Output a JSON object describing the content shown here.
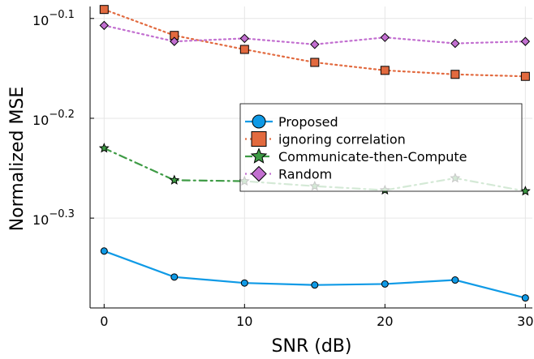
{
  "chart_data": {
    "type": "line",
    "title": "",
    "xlabel": "SNR (dB)",
    "ylabel": "Normalized MSE",
    "x": [
      0,
      5,
      10,
      15,
      20,
      25,
      30
    ],
    "xlim": [
      -1,
      30.5
    ],
    "xticks": [
      0,
      10,
      20,
      30
    ],
    "ylog10lim": [
      -0.39,
      -0.088
    ],
    "yticks": [
      {
        "value": -0.1,
        "label": "10",
        "exp": "−0.1"
      },
      {
        "value": -0.2,
        "label": "10",
        "exp": "−0.2"
      },
      {
        "value": -0.3,
        "label": "10",
        "exp": "−0.3"
      }
    ],
    "grid": true,
    "legend_position": "center-right",
    "series": [
      {
        "name": "Proposed",
        "color": "#0f9ae6",
        "line_style": "solid",
        "marker": "circle",
        "log10_values": [
          -0.333,
          -0.359,
          -0.365,
          -0.367,
          -0.366,
          -0.362,
          -0.38
        ]
      },
      {
        "name": "ignoring correlation",
        "color": "#e26a3f",
        "line_style": "dotted",
        "marker": "square",
        "log10_values": [
          -0.091,
          -0.117,
          -0.131,
          -0.144,
          -0.152,
          -0.156,
          -0.158
        ]
      },
      {
        "name": "Communicate-then-Compute",
        "color": "#3e9b45",
        "line_style": "dashdot",
        "marker": "star",
        "log10_values": [
          -0.23,
          -0.262,
          -0.263,
          -0.268,
          -0.272,
          -0.26,
          -0.273
        ]
      },
      {
        "name": "Random",
        "color": "#c26fd0",
        "line_style": "dotted",
        "marker": "diamond",
        "log10_values": [
          -0.107,
          -0.123,
          -0.12,
          -0.126,
          -0.119,
          -0.125,
          -0.123
        ]
      }
    ]
  }
}
